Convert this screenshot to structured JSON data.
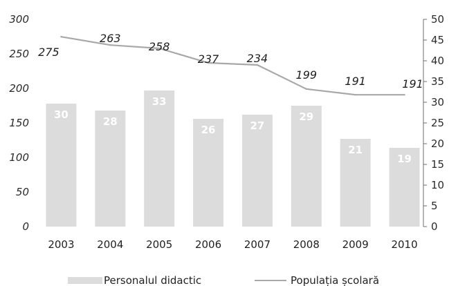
{
  "chart_data": {
    "type": "bar+line",
    "categories": [
      "2003",
      "2004",
      "2005",
      "2006",
      "2007",
      "2008",
      "2009",
      "2010"
    ],
    "series": [
      {
        "name": "Personalul didactic",
        "type": "bar",
        "axis": "left",
        "values": [
          178,
          168,
          197,
          156,
          162,
          175,
          127,
          114
        ],
        "data_labels": [
          "30",
          "28",
          "33",
          "26",
          "27",
          "29",
          "21",
          "19"
        ]
      },
      {
        "name": "Populația școlară",
        "type": "line",
        "axis": "right",
        "values": [
          45.8,
          43.8,
          43.0,
          39.5,
          39.0,
          33.2,
          31.8,
          31.8
        ],
        "data_labels": [
          "275",
          "263",
          "258",
          "237",
          "234",
          "199",
          "191",
          "191"
        ]
      }
    ],
    "y_left": {
      "min": 0,
      "max": 300,
      "ticks": [
        "0",
        "50",
        "100",
        "150",
        "200",
        "250",
        "300"
      ]
    },
    "y_right": {
      "min": 0,
      "max": 50,
      "ticks": [
        "0",
        "5",
        "10",
        "15",
        "20",
        "25",
        "30",
        "35",
        "40",
        "45",
        "50"
      ]
    },
    "legend_position": "bottom",
    "colors": {
      "bar": "#dcdcdc",
      "line": "#a8a8a8",
      "text": "#222222"
    }
  }
}
